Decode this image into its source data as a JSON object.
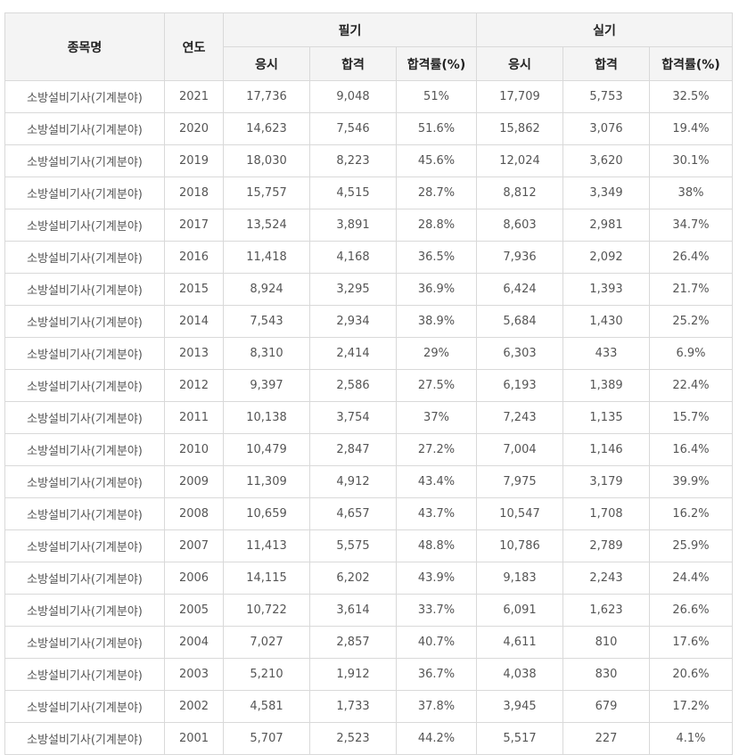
{
  "headers": {
    "item": "종목명",
    "year": "연도",
    "written": "필기",
    "practical": "실기",
    "applicants": "응시",
    "passed": "합격",
    "pass_rate": "합격률(%)"
  },
  "rows": [
    [
      "소방설비기사(기계분야)",
      "2021",
      "17,736",
      "9,048",
      "51%",
      "17,709",
      "5,753",
      "32.5%"
    ],
    [
      "소방설비기사(기계분야)",
      "2020",
      "14,623",
      "7,546",
      "51.6%",
      "15,862",
      "3,076",
      "19.4%"
    ],
    [
      "소방설비기사(기계분야)",
      "2019",
      "18,030",
      "8,223",
      "45.6%",
      "12,024",
      "3,620",
      "30.1%"
    ],
    [
      "소방설비기사(기계분야)",
      "2018",
      "15,757",
      "4,515",
      "28.7%",
      "8,812",
      "3,349",
      "38%"
    ],
    [
      "소방설비기사(기계분야)",
      "2017",
      "13,524",
      "3,891",
      "28.8%",
      "8,603",
      "2,981",
      "34.7%"
    ],
    [
      "소방설비기사(기계분야)",
      "2016",
      "11,418",
      "4,168",
      "36.5%",
      "7,936",
      "2,092",
      "26.4%"
    ],
    [
      "소방설비기사(기계분야)",
      "2015",
      "8,924",
      "3,295",
      "36.9%",
      "6,424",
      "1,393",
      "21.7%"
    ],
    [
      "소방설비기사(기계분야)",
      "2014",
      "7,543",
      "2,934",
      "38.9%",
      "5,684",
      "1,430",
      "25.2%"
    ],
    [
      "소방설비기사(기계분야)",
      "2013",
      "8,310",
      "2,414",
      "29%",
      "6,303",
      "433",
      "6.9%"
    ],
    [
      "소방설비기사(기계분야)",
      "2012",
      "9,397",
      "2,586",
      "27.5%",
      "6,193",
      "1,389",
      "22.4%"
    ],
    [
      "소방설비기사(기계분야)",
      "2011",
      "10,138",
      "3,754",
      "37%",
      "7,243",
      "1,135",
      "15.7%"
    ],
    [
      "소방설비기사(기계분야)",
      "2010",
      "10,479",
      "2,847",
      "27.2%",
      "7,004",
      "1,146",
      "16.4%"
    ],
    [
      "소방설비기사(기계분야)",
      "2009",
      "11,309",
      "4,912",
      "43.4%",
      "7,975",
      "3,179",
      "39.9%"
    ],
    [
      "소방설비기사(기계분야)",
      "2008",
      "10,659",
      "4,657",
      "43.7%",
      "10,547",
      "1,708",
      "16.2%"
    ],
    [
      "소방설비기사(기계분야)",
      "2007",
      "11,413",
      "5,575",
      "48.8%",
      "10,786",
      "2,789",
      "25.9%"
    ],
    [
      "소방설비기사(기계분야)",
      "2006",
      "14,115",
      "6,202",
      "43.9%",
      "9,183",
      "2,243",
      "24.4%"
    ],
    [
      "소방설비기사(기계분야)",
      "2005",
      "10,722",
      "3,614",
      "33.7%",
      "6,091",
      "1,623",
      "26.6%"
    ],
    [
      "소방설비기사(기계분야)",
      "2004",
      "7,027",
      "2,857",
      "40.7%",
      "4,611",
      "810",
      "17.6%"
    ],
    [
      "소방설비기사(기계분야)",
      "2003",
      "5,210",
      "1,912",
      "36.7%",
      "4,038",
      "830",
      "20.6%"
    ],
    [
      "소방설비기사(기계분야)",
      "2002",
      "4,581",
      "1,733",
      "37.8%",
      "3,945",
      "679",
      "17.2%"
    ],
    [
      "소방설비기사(기계분야)",
      "2001",
      "5,707",
      "2,523",
      "44.2%",
      "5,517",
      "227",
      "4.1%"
    ]
  ]
}
